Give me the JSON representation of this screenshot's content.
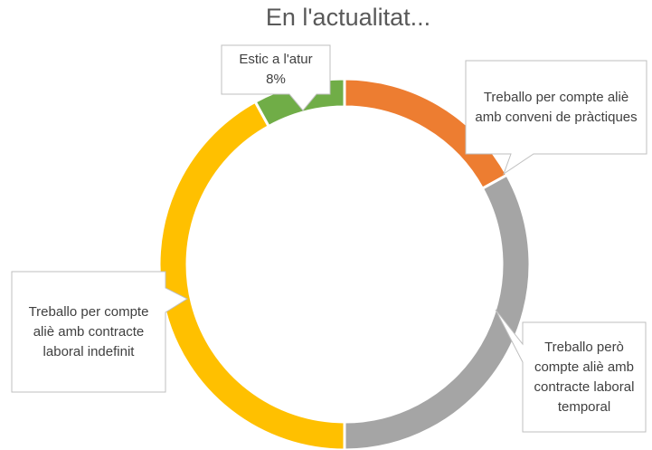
{
  "chart_data": {
    "type": "donut",
    "title": "En l'actualitat...",
    "categories": [
      "Treballo per compte aliè amb conveni de pràctiques",
      "Treballo però compte aliè amb contracte laboral temporal",
      "Treballo per compte aliè amb contracte laboral indefinit",
      "Estic a l'atur"
    ],
    "values": [
      17,
      33,
      42,
      8
    ],
    "value_labels": [
      null,
      null,
      null,
      "8%"
    ],
    "colors": [
      "#ed7d31",
      "#a5a5a5",
      "#ffc000",
      "#70ad47"
    ]
  }
}
